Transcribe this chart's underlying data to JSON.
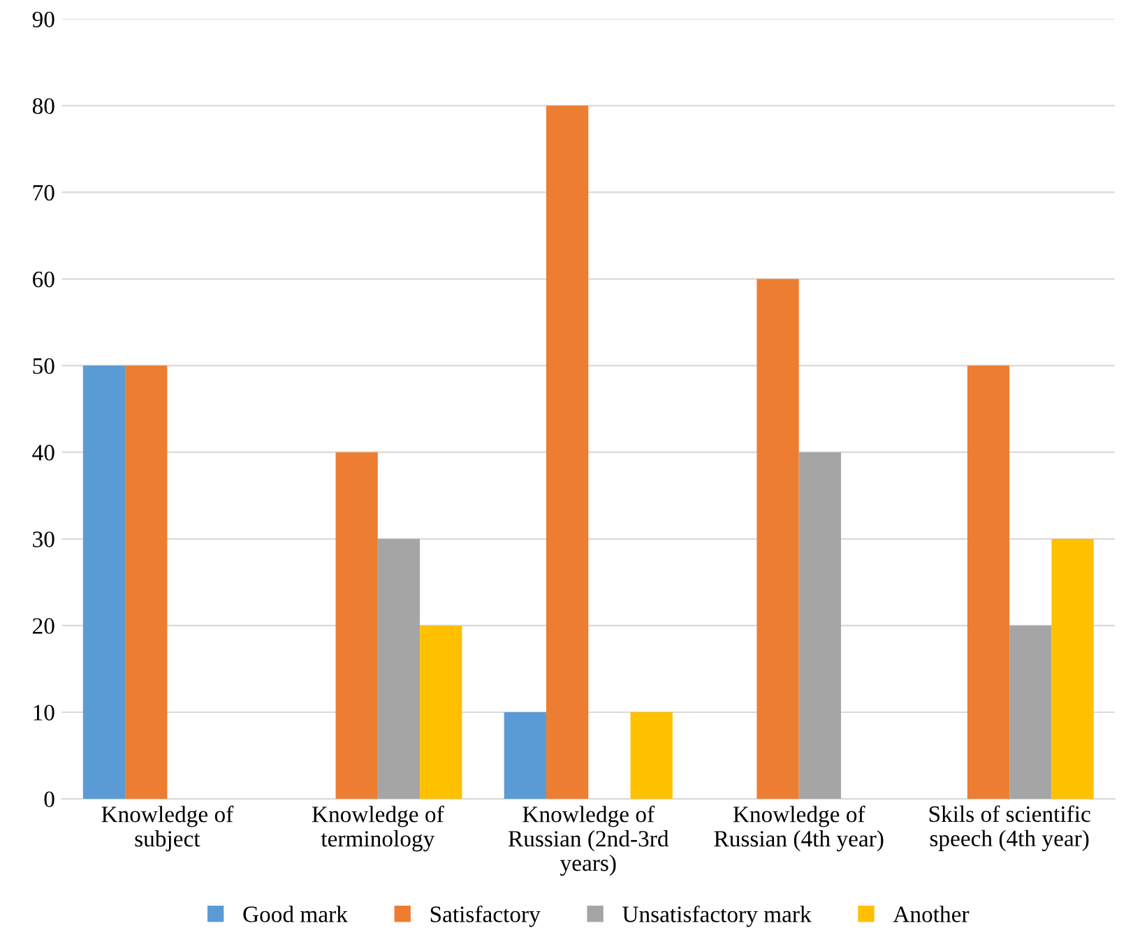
{
  "chart_data": {
    "type": "bar",
    "categories": [
      "Knowledge of\nsubject",
      "Knowledge of\nterminology",
      "Knowledge of\nRussian (2nd-3rd\nyears)",
      "Knowledge of\nRussian (4th year)",
      "Skils of scientific\nspeech (4th year)"
    ],
    "series": [
      {
        "name": "Good mark",
        "color": "#5b9bd5",
        "values": [
          50,
          null,
          10,
          null,
          null
        ]
      },
      {
        "name": "Satisfactory",
        "color": "#ed7d31",
        "values": [
          50,
          40,
          80,
          60,
          50
        ]
      },
      {
        "name": "Unsatisfactory mark",
        "color": "#a5a5a5",
        "values": [
          null,
          30,
          null,
          40,
          20
        ]
      },
      {
        "name": "Another",
        "color": "#ffc000",
        "values": [
          null,
          20,
          10,
          null,
          30
        ]
      }
    ],
    "ylim": [
      0,
      90
    ],
    "yticks": [
      0,
      10,
      20,
      30,
      40,
      50,
      60,
      70,
      80,
      90
    ],
    "grid": "y",
    "legend": "bottom"
  }
}
